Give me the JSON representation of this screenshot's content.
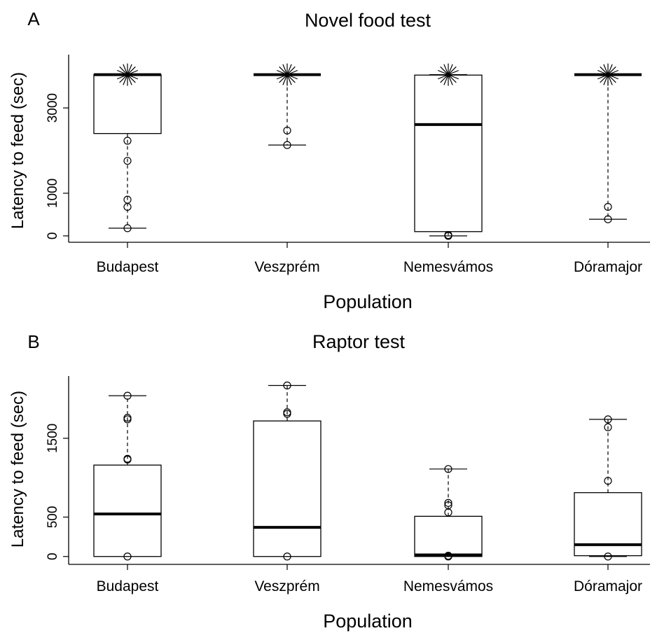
{
  "chart_data": [
    {
      "type": "boxplot",
      "panel_label": "A",
      "title": "Novel food test",
      "xlabel": "Population",
      "ylabel": "Latency to feed (sec)",
      "ylim": [
        -150,
        4250
      ],
      "yticks": [
        0,
        1000,
        3000
      ],
      "categories": [
        "Budapest",
        "Veszprém",
        "Nemesvámos",
        "Dóramajor"
      ],
      "boxes": [
        {
          "category": "Budapest",
          "whisker_low": 180,
          "q1": 2400,
          "median": 3780,
          "q3": 3780,
          "whisker_high": 3780,
          "outliers": [
            180,
            680,
            850,
            1760,
            2230
          ],
          "ceiling": 3780
        },
        {
          "category": "Veszprém",
          "whisker_low": 2130,
          "q1": 3780,
          "median": 3780,
          "q3": 3780,
          "whisker_high": 3780,
          "outliers": [
            2130,
            2470
          ],
          "ceiling": 3780
        },
        {
          "category": "Nemesvámos",
          "whisker_low": 0,
          "q1": 100,
          "median": 2610,
          "q3": 3770,
          "whisker_high": 3780,
          "outliers": [
            0,
            20
          ],
          "ceiling": 3780
        },
        {
          "category": "Dóramajor",
          "whisker_low": 390,
          "q1": 3780,
          "median": 3780,
          "q3": 3780,
          "whisker_high": 3780,
          "outliers": [
            390,
            680
          ],
          "ceiling": 3780
        }
      ]
    },
    {
      "type": "boxplot",
      "panel_label": "B",
      "title": "Raptor test",
      "xlabel": "Population",
      "ylabel": "Latency to feed (sec)",
      "ylim": [
        -100,
        2290
      ],
      "yticks": [
        0,
        500,
        1500
      ],
      "categories": [
        "Budapest",
        "Veszprém",
        "Nemesvámos",
        "Dóramajor"
      ],
      "boxes": [
        {
          "category": "Budapest",
          "whisker_low": 0,
          "q1": 0,
          "median": 540,
          "q3": 1160,
          "whisker_high": 2040,
          "outliers": [
            0,
            1230,
            1240,
            1740,
            1760,
            2040
          ]
        },
        {
          "category": "Veszprém",
          "whisker_low": 0,
          "q1": 0,
          "median": 370,
          "q3": 1720,
          "whisker_high": 2170,
          "outliers": [
            0,
            1810,
            1830,
            2170
          ]
        },
        {
          "category": "Nemesvámos",
          "whisker_low": 0,
          "q1": 0,
          "median": 20,
          "q3": 510,
          "whisker_high": 1110,
          "outliers": [
            0,
            10,
            560,
            650,
            680,
            1110
          ]
        },
        {
          "category": "Dóramajor",
          "whisker_low": 0,
          "q1": 10,
          "median": 150,
          "q3": 810,
          "whisker_high": 1740,
          "outliers": [
            0,
            960,
            1640,
            1740
          ]
        }
      ]
    }
  ]
}
